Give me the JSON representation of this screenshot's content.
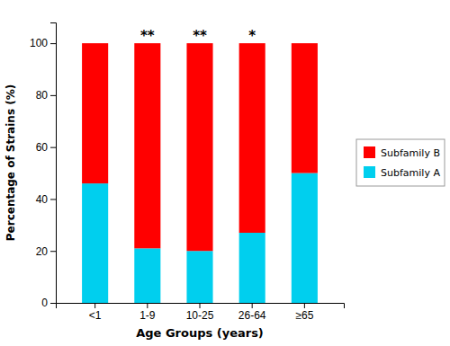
{
  "chart_data": {
    "type": "bar",
    "stacked": true,
    "categories": [
      "<1",
      "1-9",
      "10-25",
      "26-64",
      "≥65"
    ],
    "series": [
      {
        "name": "Subfamily A",
        "color": "#00CFEE",
        "values": [
          46,
          21,
          20,
          27,
          50
        ]
      },
      {
        "name": "Subfamily B",
        "color": "#FF0000",
        "values": [
          54,
          79,
          80,
          73,
          50
        ]
      }
    ],
    "x_label": "Age Groups (years)",
    "y_label": "Percentage of Strains (%)",
    "ylim": [
      0,
      108
    ],
    "yticks": [
      0,
      20,
      40,
      60,
      80,
      100
    ],
    "annotations": [
      null,
      "**",
      "**",
      "*",
      null
    ],
    "legend": "right",
    "grid": false
  }
}
